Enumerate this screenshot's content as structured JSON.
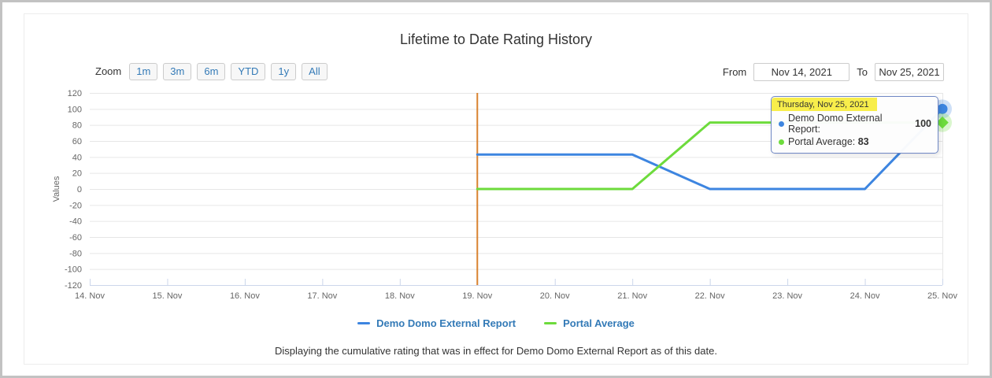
{
  "card": {
    "title": "Lifetime to Date Rating History",
    "caption": "Displaying the cumulative rating that was in effect for Demo Domo External Report as of this date."
  },
  "controls": {
    "zoom_label": "Zoom",
    "zoom_buttons": [
      "1m",
      "3m",
      "6m",
      "YTD",
      "1y",
      "All"
    ],
    "from_label": "From",
    "from_value": "Nov 14, 2021",
    "to_label": "To",
    "to_value": "Nov 25, 2021"
  },
  "chart_data": {
    "type": "line",
    "title": "Lifetime to Date Rating History",
    "xlabel": "",
    "ylabel": "Values",
    "ylim": [
      -120,
      120
    ],
    "y_ticks": [
      120,
      100,
      80,
      60,
      40,
      20,
      0,
      -20,
      -40,
      -60,
      -80,
      -100,
      -120
    ],
    "x_categories": [
      "14. Nov",
      "15. Nov",
      "16. Nov",
      "17. Nov",
      "18. Nov",
      "19. Nov",
      "20. Nov",
      "21. Nov",
      "22. Nov",
      "23. Nov",
      "24. Nov",
      "25. Nov"
    ],
    "grid": true,
    "legend_position": "bottom",
    "plotline": {
      "x": "19. Nov",
      "color": "#d9822f"
    },
    "series": [
      {
        "name": "Demo Domo External Report",
        "color": "#3d85e0",
        "marker": "circle",
        "x": [
          "19. Nov",
          "20. Nov",
          "21. Nov",
          "22. Nov",
          "23. Nov",
          "24. Nov",
          "25. Nov"
        ],
        "values": [
          43,
          43,
          43,
          0,
          0,
          0,
          100
        ]
      },
      {
        "name": "Portal Average",
        "color": "#6ddb3c",
        "marker": "diamond",
        "x": [
          "19. Nov",
          "20. Nov",
          "21. Nov",
          "22. Nov",
          "23. Nov",
          "24. Nov",
          "25. Nov"
        ],
        "values": [
          0,
          0,
          0,
          83,
          83,
          83,
          83
        ]
      }
    ]
  },
  "tooltip": {
    "header": "Thursday, Nov 25, 2021",
    "rows": [
      {
        "label": "Demo Domo External Report",
        "value": "100",
        "color": "#3d85e0"
      },
      {
        "label": "Portal Average",
        "value": "83",
        "color": "#6ddb3c"
      }
    ],
    "highlight_color": "#f8ee4b",
    "border_color": "#7088c5"
  },
  "colors": {
    "accent_link_blue": "#337ab7",
    "axis_label_gray": "#666666",
    "grid_gray": "#e6e6e6",
    "axis_line_blue_gray": "#ccd6eb",
    "plotline_orange": "#d9822f"
  }
}
